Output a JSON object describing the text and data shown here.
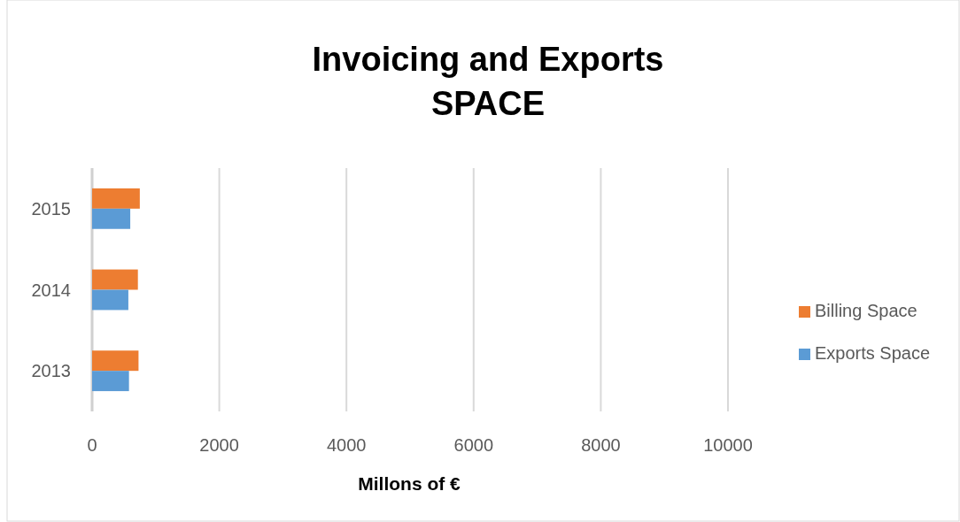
{
  "chart_data": {
    "type": "bar",
    "title": "Invoicing and Exports\nSPACE",
    "orientation": "horizontal",
    "categories": [
      "2015",
      "2014",
      "2013"
    ],
    "series": [
      {
        "name": "Billing Space",
        "color": "#ed7d31",
        "values": [
          750,
          720,
          730
        ]
      },
      {
        "name": "Exports Space",
        "color": "#5b9bd5",
        "values": [
          600,
          570,
          580
        ]
      }
    ],
    "xlabel": "Millons of €",
    "xlim": [
      0,
      10000
    ],
    "xticks": [
      0,
      2000,
      4000,
      6000,
      8000,
      10000
    ],
    "grid": "x",
    "legend": "right"
  }
}
